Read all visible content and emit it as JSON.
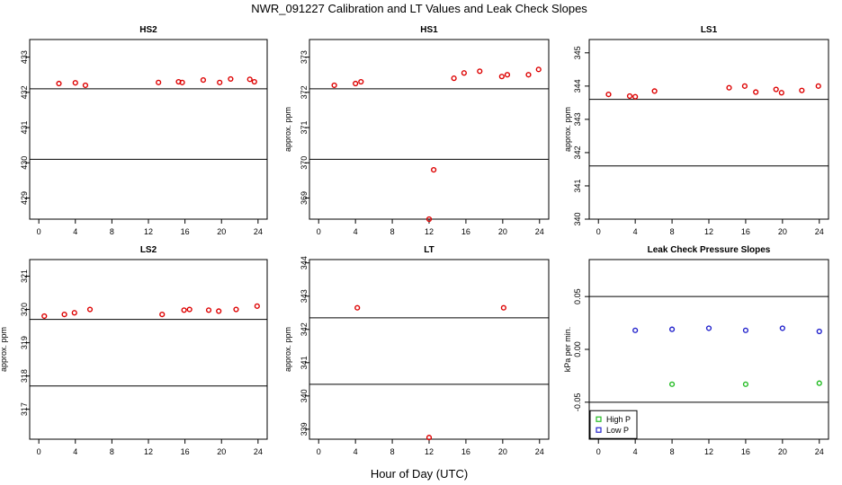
{
  "page": {
    "title": "NWR_091227  Calibration and LT Values and Leak Check Slopes",
    "xlabel": "Hour of Day (UTC)"
  },
  "colors": {
    "points": "#dd0000",
    "high_p": "#22bb22",
    "low_p": "#2222cc",
    "lines": "#000000"
  },
  "chart_data": [
    {
      "id": "hs2",
      "type": "scatter",
      "title": "HS2",
      "ylabel": "",
      "xlim": [
        -1,
        25
      ],
      "ylim": [
        428.4,
        433.5
      ],
      "xticks": [
        0,
        4,
        8,
        12,
        16,
        20,
        24
      ],
      "yticks": [
        429,
        430,
        431,
        432,
        433
      ],
      "hlines": [
        432.1,
        430.1
      ],
      "series": [
        {
          "name": "HS2",
          "x": [
            2.2,
            4.0,
            5.1,
            13.1,
            15.3,
            15.7,
            18.0,
            19.8,
            21.0,
            23.1,
            23.6
          ],
          "y": [
            432.25,
            432.27,
            432.2,
            432.28,
            432.3,
            432.28,
            432.35,
            432.28,
            432.38,
            432.37,
            432.3
          ]
        }
      ]
    },
    {
      "id": "hs1",
      "type": "scatter",
      "title": "HS1",
      "ylabel": "approx. ppm",
      "xlim": [
        -1,
        25
      ],
      "ylim": [
        368.4,
        373.5
      ],
      "xticks": [
        0,
        4,
        8,
        12,
        16,
        20,
        24
      ],
      "yticks": [
        369,
        370,
        371,
        372,
        373
      ],
      "hlines": [
        372.1,
        370.1
      ],
      "series": [
        {
          "name": "HS1",
          "x": [
            1.7,
            4.0,
            4.6,
            12.0,
            12.5,
            14.7,
            15.8,
            17.5,
            19.9,
            20.5,
            22.8,
            23.9
          ],
          "y": [
            372.2,
            372.25,
            372.3,
            368.4,
            369.8,
            372.4,
            372.55,
            372.6,
            372.45,
            372.5,
            372.5,
            372.65
          ]
        }
      ]
    },
    {
      "id": "ls1",
      "type": "scatter",
      "title": "LS1",
      "ylabel": "approx. ppm",
      "xlim": [
        -1,
        25
      ],
      "ylim": [
        340,
        345.4
      ],
      "xticks": [
        0,
        4,
        8,
        12,
        16,
        20,
        24
      ],
      "yticks": [
        340,
        341,
        342,
        343,
        344,
        345
      ],
      "hlines": [
        343.6,
        341.6
      ],
      "series": [
        {
          "name": "LS1",
          "x": [
            1.1,
            3.4,
            4.0,
            6.1,
            14.2,
            15.9,
            17.1,
            19.3,
            19.9,
            22.1,
            23.9
          ],
          "y": [
            343.75,
            343.7,
            343.68,
            343.85,
            343.95,
            344.0,
            343.82,
            343.9,
            343.8,
            343.87,
            344.0
          ]
        }
      ]
    },
    {
      "id": "ls2",
      "type": "scatter",
      "title": "LS2",
      "ylabel": "approx. ppm",
      "xlim": [
        -1,
        25
      ],
      "ylim": [
        316.1,
        321.5
      ],
      "xticks": [
        0,
        4,
        8,
        12,
        16,
        20,
        24
      ],
      "yticks": [
        317,
        318,
        319,
        320,
        321
      ],
      "hlines": [
        319.7,
        317.7
      ],
      "series": [
        {
          "name": "LS2",
          "x": [
            0.6,
            2.8,
            3.9,
            5.6,
            13.5,
            15.9,
            16.5,
            18.6,
            19.7,
            21.6,
            23.9
          ],
          "y": [
            319.8,
            319.85,
            319.9,
            320.0,
            319.85,
            319.98,
            320.0,
            319.98,
            319.95,
            320.0,
            320.1
          ]
        }
      ]
    },
    {
      "id": "lt",
      "type": "scatter",
      "title": "LT",
      "ylabel": "approx. ppm",
      "xlim": [
        -1,
        25
      ],
      "ylim": [
        338.7,
        344.1
      ],
      "xticks": [
        0,
        4,
        8,
        12,
        16,
        20,
        24
      ],
      "yticks": [
        339,
        340,
        341,
        342,
        343,
        344
      ],
      "hlines": [
        342.35,
        340.35
      ],
      "series": [
        {
          "name": "LT",
          "x": [
            4.2,
            12.0,
            20.1
          ],
          "y": [
            342.65,
            338.75,
            342.65
          ]
        }
      ]
    },
    {
      "id": "leak",
      "type": "scatter",
      "title": "Leak Check Pressure Slopes",
      "ylabel": "kPa per min.",
      "xlim": [
        -1,
        25
      ],
      "ylim": [
        -0.085,
        0.085
      ],
      "xticks": [
        0,
        4,
        8,
        12,
        16,
        20,
        24
      ],
      "yticks": [
        -0.05,
        0.0,
        0.05
      ],
      "ytick_labels": [
        "-0.05",
        "0.00",
        "0.05"
      ],
      "hlines": [
        0.05,
        -0.05
      ],
      "legend": {
        "position": "bottom-left",
        "entries": [
          "High P",
          "Low P"
        ]
      },
      "series": [
        {
          "name": "High P",
          "x": [
            8,
            16,
            24
          ],
          "y": [
            -0.033,
            -0.033,
            -0.032
          ]
        },
        {
          "name": "Low P",
          "x": [
            4,
            8,
            12,
            16,
            20,
            24
          ],
          "y": [
            0.018,
            0.019,
            0.02,
            0.018,
            0.02,
            0.017
          ]
        }
      ]
    }
  ]
}
